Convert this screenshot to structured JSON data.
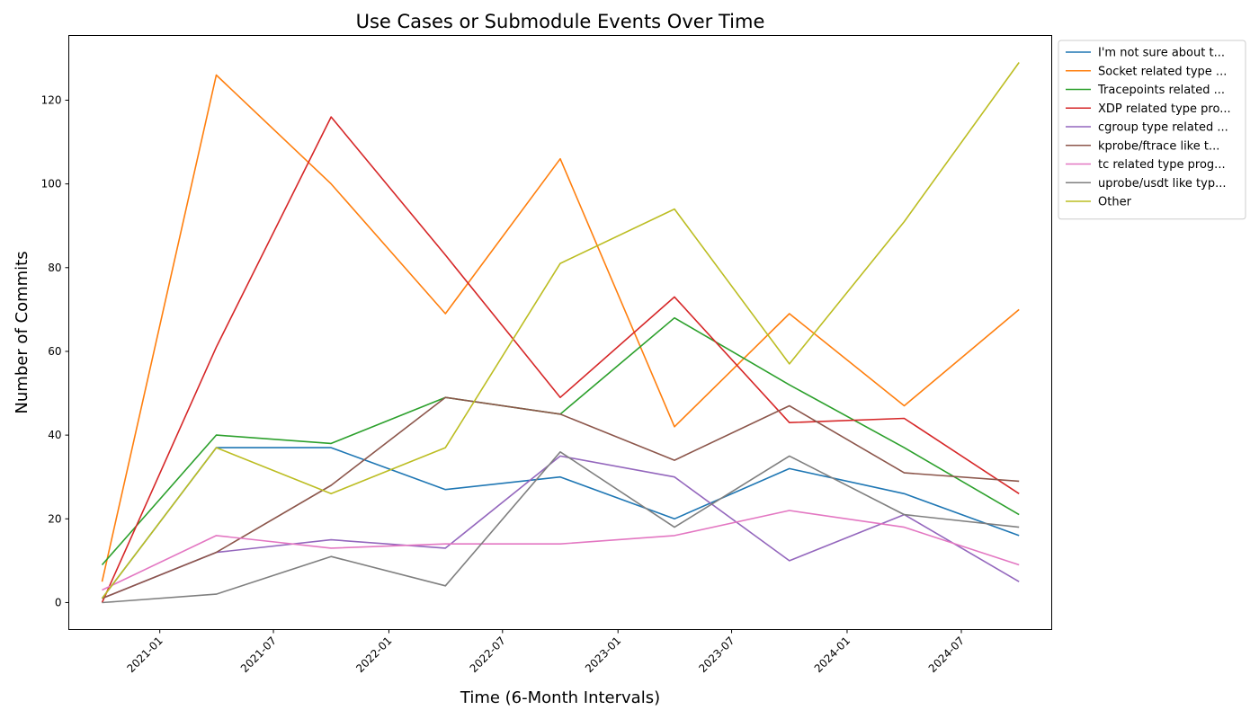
{
  "chart_data": {
    "type": "line",
    "title": "Use Cases or Submodule Events Over Time",
    "xlabel": "Time (6-Month Intervals)",
    "ylabel": "Number of Commits",
    "x": [
      "2020-10-01",
      "2021-04-01",
      "2021-10-01",
      "2022-04-01",
      "2022-10-01",
      "2023-04-01",
      "2023-10-01",
      "2024-04-01",
      "2024-10-01"
    ],
    "xlim": [
      "2020-08-09",
      "2024-11-22"
    ],
    "ylim": [
      -6.45,
      135.45
    ],
    "x_ticks": [
      "2021-01",
      "2021-07",
      "2022-01",
      "2022-07",
      "2023-01",
      "2023-07",
      "2024-01",
      "2024-07"
    ],
    "y_ticks": [
      0,
      20,
      40,
      60,
      80,
      100,
      120
    ],
    "grid": false,
    "legend_position": "outside upper right",
    "series": [
      {
        "name": "I'm not sure about t...",
        "color": "#1f77b4",
        "values": [
          1,
          37,
          37,
          27,
          30,
          20,
          32,
          26,
          16
        ]
      },
      {
        "name": "Socket related type ...",
        "color": "#ff7f0e",
        "values": [
          5,
          126,
          100,
          69,
          106,
          42,
          69,
          47,
          70
        ]
      },
      {
        "name": "Tracepoints related ...",
        "color": "#2ca02c",
        "values": [
          9,
          40,
          38,
          49,
          45,
          68,
          52,
          37,
          21
        ]
      },
      {
        "name": "XDP related type pro...",
        "color": "#d62728",
        "values": [
          0,
          61,
          116,
          83,
          49,
          73,
          43,
          44,
          26
        ]
      },
      {
        "name": "cgroup type related ...",
        "color": "#9467bd",
        "values": [
          1,
          12,
          15,
          13,
          35,
          30,
          10,
          21,
          5
        ]
      },
      {
        "name": "kprobe/ftrace like t...",
        "color": "#8c564b",
        "values": [
          1,
          12,
          28,
          49,
          45,
          34,
          47,
          31,
          29
        ]
      },
      {
        "name": "tc related type prog...",
        "color": "#e377c2",
        "values": [
          3,
          16,
          13,
          14,
          14,
          16,
          22,
          18,
          9
        ]
      },
      {
        "name": "uprobe/usdt like typ...",
        "color": "#7f7f7f",
        "values": [
          0,
          2,
          11,
          4,
          36,
          18,
          35,
          21,
          18
        ]
      },
      {
        "name": "Other",
        "color": "#bcbd22",
        "values": [
          1,
          37,
          26,
          37,
          81,
          94,
          57,
          91,
          129
        ]
      }
    ]
  }
}
